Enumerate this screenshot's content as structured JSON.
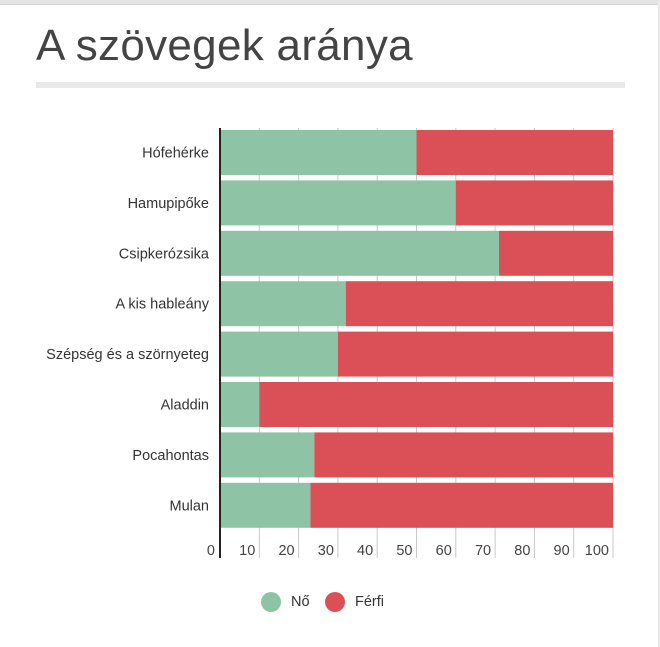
{
  "chart_data": {
    "type": "bar",
    "orientation": "horizontal",
    "stacked": true,
    "title": "A szövegek aránya",
    "categories": [
      "Hófehérke",
      "Hamupipőke",
      "Csipkerózsika",
      "A kis hableány",
      "Szépség és a szörnyeteg",
      "Aladdin",
      "Pocahontas",
      "Mulan"
    ],
    "series": [
      {
        "name": "Nő",
        "color": "#8fc3a6",
        "values": [
          50,
          60,
          71,
          32,
          30,
          10,
          24,
          23
        ]
      },
      {
        "name": "Férfi",
        "color": "#db5056",
        "values": [
          50,
          40,
          29,
          68,
          70,
          90,
          76,
          77
        ]
      }
    ],
    "xlim": [
      0,
      100
    ],
    "xticks": [
      "0",
      "10",
      "20",
      "30",
      "40",
      "50",
      "60",
      "70",
      "80",
      "90",
      "100"
    ],
    "grid": true,
    "legend_position": "bottom-center"
  }
}
